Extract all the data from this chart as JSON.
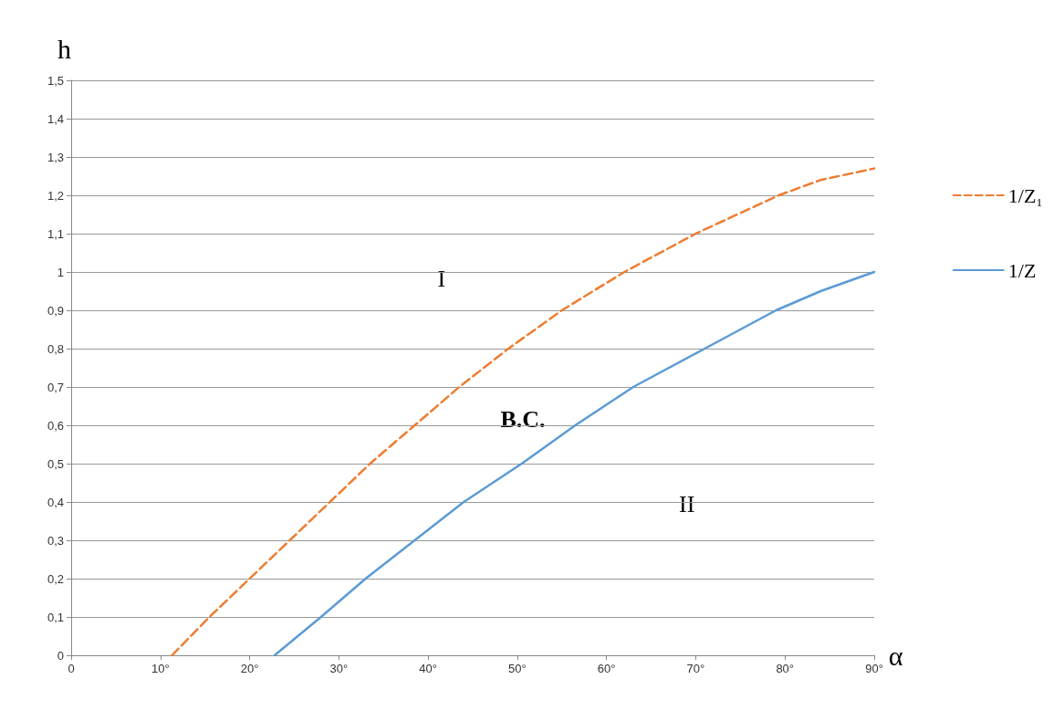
{
  "chart_data": {
    "type": "line",
    "xlabel": "α",
    "ylabel": "h",
    "series": [
      {
        "name": "1/Z₁",
        "color": "#ed7d31",
        "line_style": "dashed",
        "x": [
          11.3,
          15.5,
          20,
          24.5,
          29,
          33.5,
          38.5,
          43.5,
          49,
          55,
          62,
          70,
          79.3,
          84,
          90
        ],
        "values": [
          0,
          0.1,
          0.2,
          0.3,
          0.4,
          0.5,
          0.6,
          0.7,
          0.8,
          0.9,
          1.0,
          1.1,
          1.2,
          1.24,
          1.27
        ]
      },
      {
        "name": "1/Z",
        "color": "#5b9bd5",
        "line_style": "solid",
        "x": [
          22.8,
          28,
          33,
          38.5,
          44,
          50.5,
          56.5,
          63,
          71,
          79,
          84,
          90
        ],
        "values": [
          0,
          0.1,
          0.2,
          0.3,
          0.4,
          0.5,
          0.6,
          0.7,
          0.8,
          0.9,
          0.95,
          1.0
        ]
      }
    ],
    "xlim": [
      0,
      90
    ],
    "xticks": [
      0,
      {
        "value": 10,
        "label": "10°"
      },
      {
        "value": 20,
        "label": "20°"
      },
      {
        "value": 30,
        "label": "30°"
      },
      {
        "value": 40,
        "label": "40°"
      },
      {
        "value": 50,
        "label": "50°"
      },
      {
        "value": 60,
        "label": "60°"
      },
      {
        "value": 70,
        "label": "70°"
      },
      {
        "value": 80,
        "label": "80°"
      },
      {
        "value": 90,
        "label": "90°"
      }
    ],
    "ylim": [
      0,
      1.5
    ],
    "yticks": [
      0,
      {
        "value": 0.1,
        "label": "0,1"
      },
      {
        "value": 0.2,
        "label": "0,2"
      },
      {
        "value": 0.3,
        "label": "0,3"
      },
      {
        "value": 0.4,
        "label": "0,4"
      },
      {
        "value": 0.5,
        "label": "0,5"
      },
      {
        "value": 0.6,
        "label": "0,6"
      },
      {
        "value": 0.7,
        "label": "0,7"
      },
      {
        "value": 0.8,
        "label": "0,8"
      },
      {
        "value": 0.9,
        "label": "0,9"
      },
      1,
      {
        "value": 1.1,
        "label": "1,1"
      },
      {
        "value": 1.2,
        "label": "1,2"
      },
      {
        "value": 1.3,
        "label": "1,3"
      },
      {
        "value": 1.4,
        "label": "1,4"
      },
      {
        "value": 1.5,
        "label": "1,5"
      }
    ],
    "grid": "y",
    "legend": "right",
    "marker": "none",
    "annotations": [
      "I",
      "B.C.",
      "II"
    ]
  }
}
